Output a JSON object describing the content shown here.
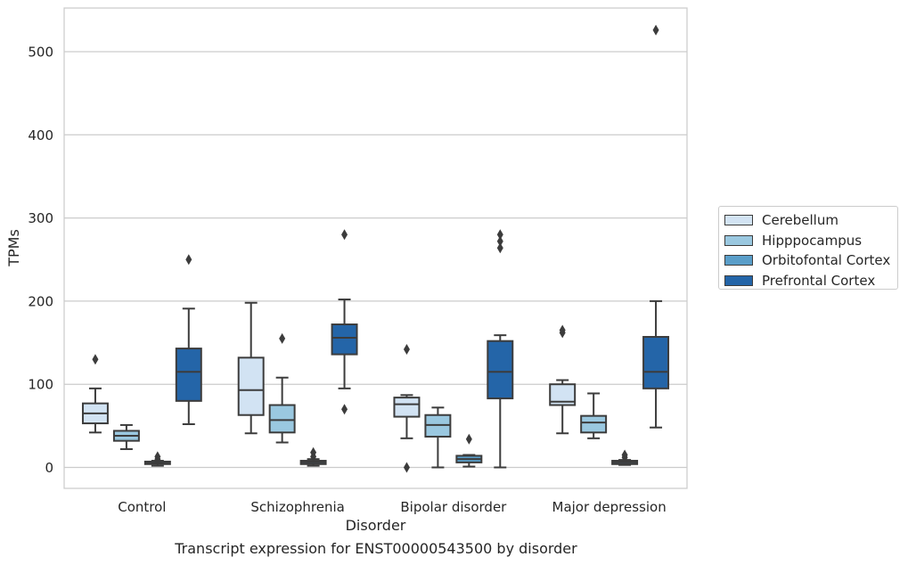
{
  "chart_data": {
    "type": "box",
    "title": "",
    "xlabel": "Disorder",
    "ylabel": "TPMs",
    "caption": "Transcript expression for ENST00000543500 by disorder",
    "ylim": [
      -25,
      555
    ],
    "yticks": [
      0,
      100,
      200,
      300,
      400,
      500
    ],
    "grid": "horizontal",
    "legend_position": "right",
    "categories": [
      "Control",
      "Schizophrenia",
      "Bipolar disorder",
      "Major depression"
    ],
    "series": [
      {
        "name": "Cerebellum",
        "color": "#d2e3f3",
        "boxes": [
          {
            "whisker_low": 42,
            "q1": 53,
            "median": 65,
            "q3": 77,
            "whisker_high": 95,
            "outliers": [
              130
            ]
          },
          {
            "whisker_low": 41,
            "q1": 63,
            "median": 93,
            "q3": 132,
            "whisker_high": 198,
            "outliers": []
          },
          {
            "whisker_low": 35,
            "q1": 61,
            "median": 76,
            "q3": 84,
            "whisker_high": 87,
            "outliers": [
              142,
              0
            ]
          },
          {
            "whisker_low": 41,
            "q1": 75,
            "median": 79,
            "q3": 100,
            "whisker_high": 105,
            "outliers": [
              162,
              165
            ]
          }
        ]
      },
      {
        "name": "Hipppocampus",
        "color": "#9ac8e0",
        "boxes": [
          {
            "whisker_low": 22,
            "q1": 32,
            "median": 38,
            "q3": 44,
            "whisker_high": 51,
            "outliers": []
          },
          {
            "whisker_low": 30,
            "q1": 42,
            "median": 57,
            "q3": 75,
            "whisker_high": 108,
            "outliers": [
              155
            ]
          },
          {
            "whisker_low": 0,
            "q1": 37,
            "median": 51,
            "q3": 63,
            "whisker_high": 72,
            "outliers": []
          },
          {
            "whisker_low": 35,
            "q1": 42,
            "median": 54,
            "q3": 62,
            "whisker_high": 89,
            "outliers": []
          }
        ]
      },
      {
        "name": "Orbitofontal Cortex",
        "color": "#5a9ec9",
        "boxes": [
          {
            "whisker_low": 2,
            "q1": 4,
            "median": 5,
            "q3": 7,
            "whisker_high": 8,
            "outliers": [
              13,
              10
            ]
          },
          {
            "whisker_low": 2,
            "q1": 4,
            "median": 6,
            "q3": 8,
            "whisker_high": 10,
            "outliers": [
              18,
              13
            ]
          },
          {
            "whisker_low": 1,
            "q1": 6,
            "median": 10,
            "q3": 14,
            "whisker_high": 15,
            "outliers": [
              34
            ]
          },
          {
            "whisker_low": 3,
            "q1": 4,
            "median": 6,
            "q3": 8,
            "whisker_high": 9,
            "outliers": [
              15,
              12
            ]
          }
        ]
      },
      {
        "name": "Prefrontal Cortex",
        "color": "#2465a8",
        "boxes": [
          {
            "whisker_low": 52,
            "q1": 80,
            "median": 115,
            "q3": 143,
            "whisker_high": 191,
            "outliers": [
              250
            ]
          },
          {
            "whisker_low": 95,
            "q1": 136,
            "median": 156,
            "q3": 172,
            "whisker_high": 202,
            "outliers": [
              280,
              70
            ]
          },
          {
            "whisker_low": 0,
            "q1": 83,
            "median": 115,
            "q3": 152,
            "whisker_high": 159,
            "outliers": [
              280,
              272,
              264
            ]
          },
          {
            "whisker_low": 48,
            "q1": 95,
            "median": 115,
            "q3": 157,
            "whisker_high": 200,
            "outliers": [
              526
            ]
          }
        ]
      }
    ]
  }
}
